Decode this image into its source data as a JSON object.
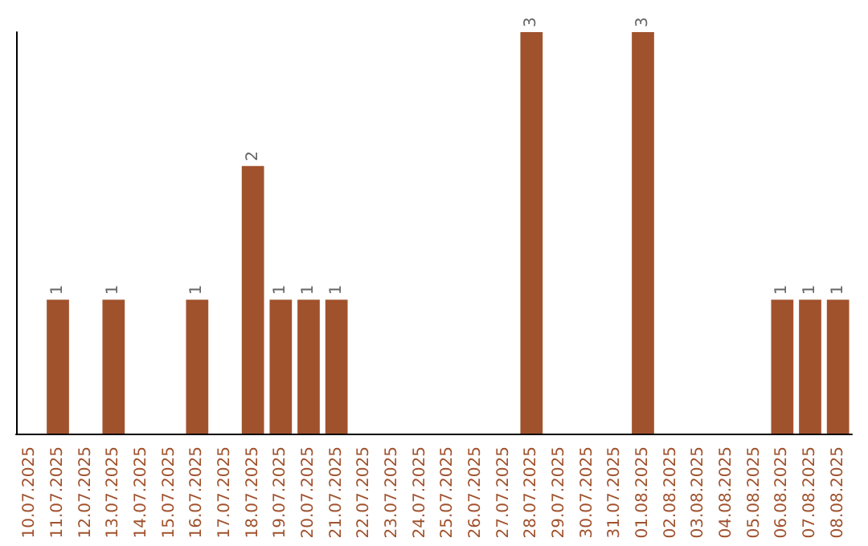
{
  "chart_data": {
    "type": "bar",
    "categories": [
      "10.07.2025",
      "11.07.2025",
      "12.07.2025",
      "13.07.2025",
      "14.07.2025",
      "15.07.2025",
      "16.07.2025",
      "17.07.2025",
      "18.07.2025",
      "19.07.2025",
      "20.07.2025",
      "21.07.2025",
      "22.07.2025",
      "23.07.2025",
      "24.07.2025",
      "25.07.2025",
      "26.07.2025",
      "27.07.2025",
      "28.07.2025",
      "29.07.2025",
      "30.07.2025",
      "31.07.2025",
      "01.08.2025",
      "02.08.2025",
      "03.08.2025",
      "04.08.2025",
      "05.08.2025",
      "06.08.2025",
      "07.08.2025",
      "08.08.2025"
    ],
    "values": [
      0,
      1,
      0,
      1,
      0,
      0,
      1,
      0,
      2,
      1,
      1,
      1,
      0,
      0,
      0,
      0,
      0,
      0,
      3,
      0,
      0,
      0,
      3,
      0,
      0,
      0,
      0,
      1,
      1,
      1
    ],
    "value_labels": [
      null,
      "1",
      null,
      "1",
      null,
      null,
      "1",
      null,
      "2",
      "1",
      "1",
      "1",
      null,
      null,
      null,
      null,
      null,
      null,
      "3",
      null,
      null,
      null,
      "3",
      null,
      null,
      null,
      null,
      "1",
      "1",
      "1"
    ],
    "color": "#a0522d",
    "ylim": [
      0,
      3
    ],
    "tick_labels": "x"
  }
}
